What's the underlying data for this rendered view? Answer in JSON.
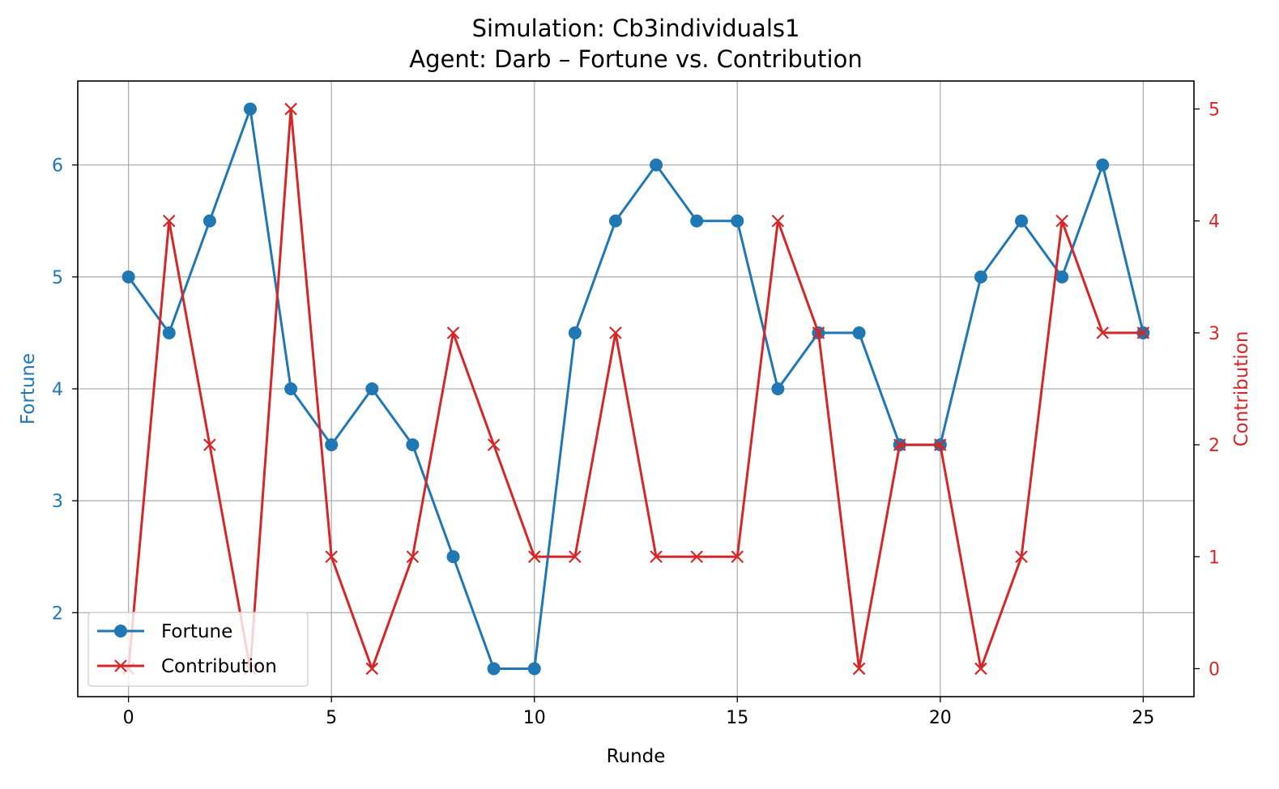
{
  "chart_data": {
    "type": "line",
    "title": "Simulation: Cb3individuals1",
    "subtitle": "Agent: Darb – Fortune vs. Contribution",
    "xlabel": "Runde",
    "ylabel_left": "Fortune",
    "ylabel_right": "Contribution",
    "xlim": [
      -1.25,
      26.25
    ],
    "ylim_left": [
      1.25,
      6.75
    ],
    "ylim_right": [
      -0.25,
      5.25
    ],
    "xticks": [
      0,
      5,
      10,
      15,
      20,
      25
    ],
    "yticks_left": [
      2,
      3,
      4,
      5,
      6
    ],
    "yticks_right": [
      0,
      1,
      2,
      3,
      4,
      5
    ],
    "grid": true,
    "legend_position": "lower-left",
    "x": [
      0,
      1,
      2,
      3,
      4,
      5,
      6,
      7,
      8,
      9,
      10,
      11,
      12,
      13,
      14,
      15,
      16,
      17,
      18,
      19,
      20,
      21,
      22,
      23,
      24,
      25
    ],
    "series": [
      {
        "name": "Fortune",
        "axis": "left",
        "color": "#1f77b4",
        "marker": "circle",
        "values": [
          5,
          4.5,
          5.5,
          6.5,
          4,
          3.5,
          4,
          3.5,
          2.5,
          1.5,
          1.5,
          4.5,
          5.5,
          6,
          5.5,
          5.5,
          4,
          4.5,
          4.5,
          3.5,
          3.5,
          5,
          5.5,
          5,
          6,
          4.5
        ]
      },
      {
        "name": "Contribution",
        "axis": "right",
        "color": "#d62728",
        "marker": "x",
        "values": [
          0,
          4,
          2,
          0,
          5,
          1,
          0,
          1,
          3,
          2,
          1,
          1,
          3,
          1,
          1,
          1,
          4,
          3,
          0,
          2,
          2,
          0,
          1,
          4,
          3,
          3
        ]
      }
    ]
  }
}
